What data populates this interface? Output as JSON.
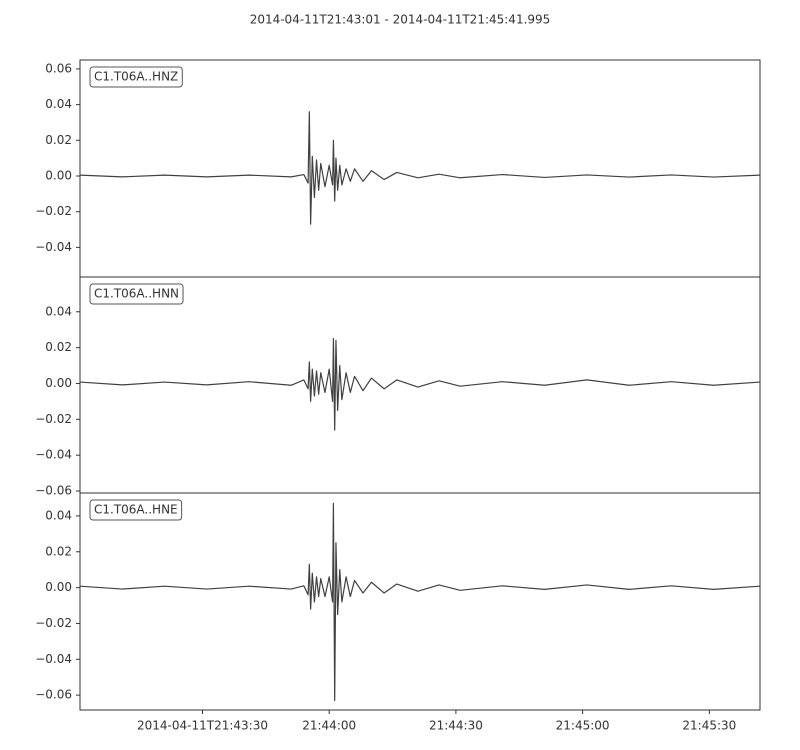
{
  "chart_data": {
    "type": "line",
    "title": "2014-04-11T21:43:01  -  2014-04-11T21:45:41.995",
    "xlim": [
      "2014-04-11T21:43:01.000",
      "2014-04-11T21:45:41.995"
    ],
    "xticks": [
      "2014-04-11T21:43:30",
      {
        "value": "2014-04-11T21:44:00",
        "label": "21:44:00"
      },
      {
        "value": "2014-04-11T21:44:30",
        "label": "21:44:30"
      },
      {
        "value": "2014-04-11T21:45:00",
        "label": "21:45:00"
      },
      {
        "value": "2014-04-11T21:45:30",
        "label": "21:45:30"
      }
    ],
    "x": [
      "2014-04-11T21:43:01.000",
      "2014-04-11T21:43:11.000",
      "2014-04-11T21:43:21.000",
      "2014-04-11T21:43:31.000",
      "2014-04-11T21:43:41.000",
      "2014-04-11T21:43:51.000",
      "2014-04-11T21:43:54.000",
      "2014-04-11T21:43:55.000",
      "2014-04-11T21:43:55.300",
      "2014-04-11T21:43:55.600",
      "2014-04-11T21:43:56.000",
      "2014-04-11T21:43:56.500",
      "2014-04-11T21:43:57.000",
      "2014-04-11T21:43:57.500",
      "2014-04-11T21:43:58.000",
      "2014-04-11T21:43:59.000",
      "2014-04-11T21:44:00.000",
      "2014-04-11T21:44:00.800",
      "2014-04-11T21:44:01.000",
      "2014-04-11T21:44:01.300",
      "2014-04-11T21:44:01.600",
      "2014-04-11T21:44:02.000",
      "2014-04-11T21:44:02.500",
      "2014-04-11T21:44:03.000",
      "2014-04-11T21:44:04.000",
      "2014-04-11T21:44:05.000",
      "2014-04-11T21:44:06.000",
      "2014-04-11T21:44:08.000",
      "2014-04-11T21:44:10.000",
      "2014-04-11T21:44:13.000",
      "2014-04-11T21:44:16.000",
      "2014-04-11T21:44:21.000",
      "2014-04-11T21:44:26.000",
      "2014-04-11T21:44:31.000",
      "2014-04-11T21:44:41.000",
      "2014-04-11T21:44:51.000",
      "2014-04-11T21:45:01.000",
      "2014-04-11T21:45:11.000",
      "2014-04-11T21:45:21.000",
      "2014-04-11T21:45:31.000",
      "2014-04-11T21:45:41.995"
    ],
    "series": [
      {
        "name": "C1.T06A..HNZ",
        "color": "#404040",
        "ylim": [
          -0.0566,
          0.065
        ],
        "yticks": [
          {
            "value": -0.04,
            "label": "−0.04"
          },
          {
            "value": -0.02,
            "label": "−0.02"
          },
          {
            "value": 0,
            "label": "0.00"
          },
          0.02,
          0.04,
          0.06
        ],
        "values": [
          0.0005,
          -0.0005,
          0.0005,
          -0.0005,
          0.0005,
          -0.0005,
          0.0008,
          -0.004,
          0.036,
          -0.027,
          0.011,
          -0.012,
          0.009,
          -0.008,
          0.007,
          -0.006,
          0.006,
          -0.005,
          0.02,
          -0.014,
          0.01,
          -0.008,
          0.006,
          -0.005,
          0.004,
          -0.003,
          0.004,
          -0.003,
          0.003,
          -0.002,
          0.002,
          -0.001,
          0.001,
          -0.001,
          0.0008,
          -0.0008,
          0.0006,
          -0.0006,
          0.0006,
          -0.0006,
          0.0005
        ]
      },
      {
        "name": "C1.T06A..HNN",
        "color": "#404040",
        "ylim": [
          -0.0611,
          0.0594
        ],
        "yticks": [
          {
            "value": -0.06,
            "label": "−0.06"
          },
          {
            "value": -0.04,
            "label": "−0.04"
          },
          {
            "value": -0.02,
            "label": "−0.02"
          },
          {
            "value": 0,
            "label": "0.00"
          },
          0.02,
          0.04
        ],
        "values": [
          0.0008,
          -0.0008,
          0.0008,
          -0.0008,
          0.001,
          -0.001,
          0.002,
          -0.003,
          0.012,
          -0.01,
          0.008,
          -0.007,
          0.007,
          -0.006,
          0.006,
          -0.005,
          0.008,
          -0.01,
          0.025,
          -0.026,
          0.024,
          -0.015,
          0.01,
          -0.009,
          0.006,
          -0.005,
          0.004,
          -0.004,
          0.003,
          -0.003,
          0.002,
          -0.002,
          0.0015,
          -0.0015,
          0.001,
          -0.001,
          0.002,
          -0.001,
          0.001,
          -0.001,
          0.0008
        ]
      },
      {
        "name": "C1.T06A..HNE",
        "color": "#404040",
        "ylim": [
          -0.0683,
          0.0528
        ],
        "yticks": [
          {
            "value": -0.06,
            "label": "−0.06"
          },
          {
            "value": -0.04,
            "label": "−0.04"
          },
          {
            "value": -0.02,
            "label": "−0.02"
          },
          {
            "value": 0,
            "label": "0.00"
          },
          0.02,
          0.04
        ],
        "values": [
          0.0008,
          -0.0008,
          0.0008,
          -0.0008,
          0.0008,
          -0.0008,
          0.001,
          -0.004,
          0.013,
          -0.012,
          0.008,
          -0.008,
          0.006,
          -0.005,
          0.005,
          -0.005,
          0.006,
          -0.008,
          0.047,
          -0.063,
          0.025,
          -0.015,
          0.01,
          -0.008,
          0.006,
          -0.005,
          0.004,
          -0.003,
          0.003,
          -0.003,
          0.002,
          -0.002,
          0.0015,
          -0.0015,
          0.001,
          -0.001,
          0.0015,
          -0.001,
          0.001,
          -0.001,
          0.0008
        ]
      }
    ]
  }
}
